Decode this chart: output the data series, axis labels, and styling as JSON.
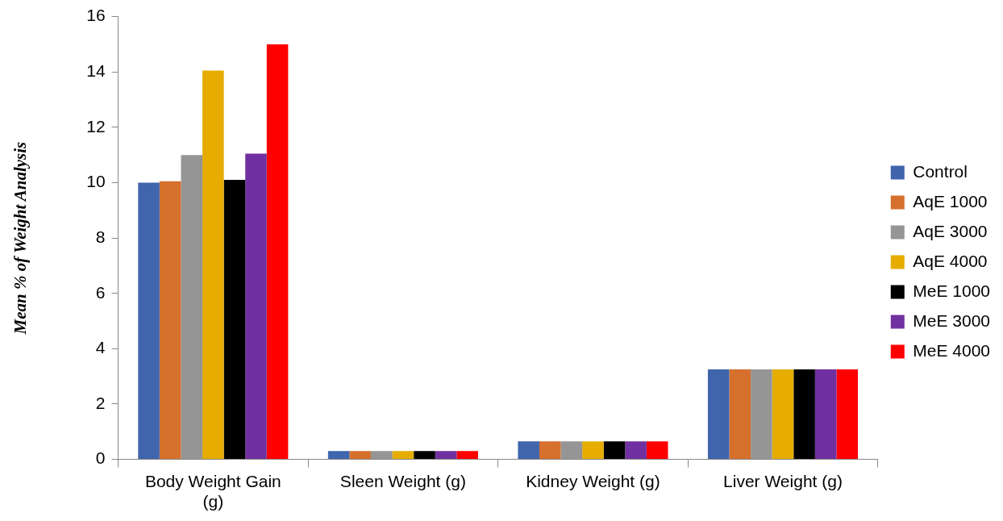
{
  "chart_data": {
    "type": "bar",
    "ylabel": "Mean % of Weight Analysis",
    "categories": [
      "Body Weight Gain (g)",
      "Sleen Weight (g)",
      "Kidney Weight (g)",
      "Liver Weight (g)"
    ],
    "series": [
      {
        "name": "Control",
        "color": "#4065ad",
        "values": [
          10.0,
          0.3,
          0.65,
          3.25
        ]
      },
      {
        "name": "AqE 1000",
        "color": "#d5702d",
        "values": [
          10.05,
          0.3,
          0.65,
          3.25
        ]
      },
      {
        "name": "AqE 3000",
        "color": "#959595",
        "values": [
          11.0,
          0.3,
          0.65,
          3.25
        ]
      },
      {
        "name": "AqE 4000",
        "color": "#e6ac00",
        "values": [
          14.05,
          0.3,
          0.65,
          3.25
        ]
      },
      {
        "name": "MeE 1000",
        "color": "#000000",
        "values": [
          10.1,
          0.3,
          0.65,
          3.25
        ]
      },
      {
        "name": "MeE 3000",
        "color": "#7030a0",
        "values": [
          11.05,
          0.3,
          0.65,
          3.25
        ]
      },
      {
        "name": "MeE 4000",
        "color": "#ff0000",
        "values": [
          15.0,
          0.3,
          0.65,
          3.25
        ]
      }
    ],
    "ylim": [
      0,
      16
    ],
    "yticks": [
      0,
      2,
      4,
      6,
      8,
      10,
      12,
      14,
      16
    ],
    "grid": false,
    "legend": "right"
  }
}
